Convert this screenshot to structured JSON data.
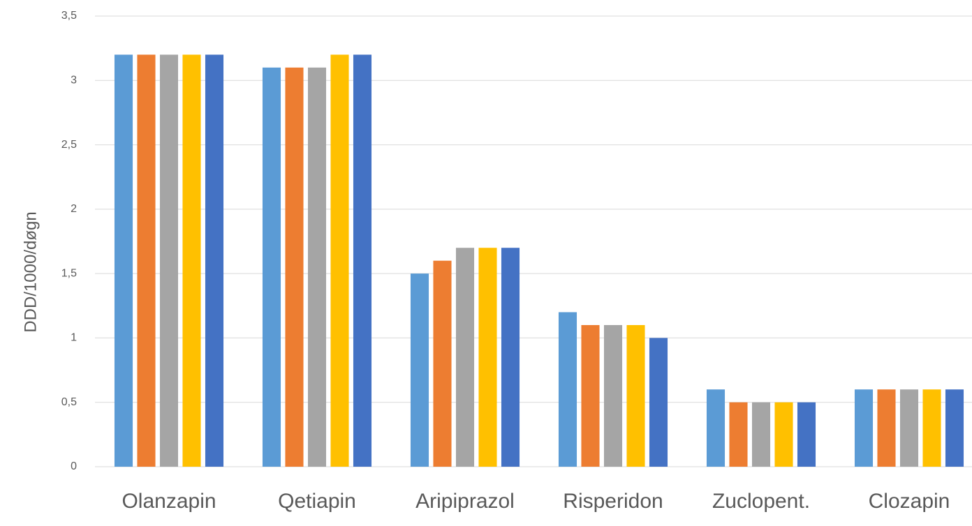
{
  "chart_data": {
    "type": "bar",
    "y_label": "DDD/1000/døgn",
    "categories": [
      "Olanzapin",
      "Qetiapin",
      "Aripiprazol",
      "Risperidon",
      "Zuclopent.",
      "Clozapin"
    ],
    "series": [
      {
        "color": "#5b9bd5",
        "values": [
          3.2,
          3.1,
          1.5,
          1.2,
          0.6,
          0.6
        ]
      },
      {
        "color": "#ed7d31",
        "values": [
          3.2,
          3.1,
          1.6,
          1.1,
          0.5,
          0.6
        ]
      },
      {
        "color": "#a5a5a5",
        "values": [
          3.2,
          3.1,
          1.7,
          1.1,
          0.5,
          0.6
        ]
      },
      {
        "color": "#ffc000",
        "values": [
          3.2,
          3.2,
          1.7,
          1.1,
          0.5,
          0.6
        ]
      },
      {
        "color": "#4472c4",
        "values": [
          3.2,
          3.2,
          1.7,
          1.0,
          0.5,
          0.6
        ]
      }
    ],
    "ylim": [
      0,
      3.5
    ],
    "yticks": [
      0,
      {
        "value": 0.5,
        "label": "0,5"
      },
      1,
      {
        "value": 1.5,
        "label": "1,5"
      },
      2,
      {
        "value": 2.5,
        "label": "2,5"
      },
      3,
      {
        "value": 3.5,
        "label": "3,5"
      }
    ],
    "grid": true
  }
}
